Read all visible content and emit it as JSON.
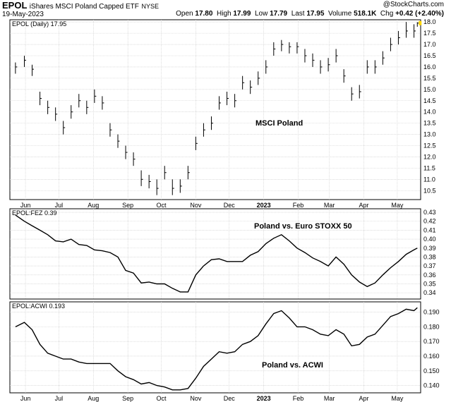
{
  "header": {
    "ticker": "EPOL",
    "name": "iShares MSCI Poland Capped ETF",
    "exchange": "NYSE",
    "date": "19-May-2023",
    "credit": "@StockCharts.com",
    "quote": {
      "open_label": "Open",
      "open": "17.80",
      "high_label": "High",
      "high": "17.99",
      "low_label": "Low",
      "low": "17.79",
      "last_label": "Last",
      "last": "17.95",
      "volume_label": "Volume",
      "volume": "518.1K",
      "chg_label": "Chg",
      "chg": "+0.42 (+2.40%)"
    }
  },
  "colors": {
    "bars": "#000000",
    "line": "#000000",
    "grid": "#c8c8c8",
    "last_marker": "#ffd700"
  },
  "chart_data": [
    {
      "type": "ohlc",
      "legend": "EPOL (Daily) 17.95",
      "annotation": "MSCI Poland",
      "x_tick_labels": [
        "Jun",
        "Jul",
        "Aug",
        "Sep",
        "Oct",
        "Nov",
        "Dec",
        "2023",
        "Feb",
        "Mar",
        "Apr",
        "May"
      ],
      "y_tick_labels": [
        "10.5",
        "11.0",
        "11.5",
        "12.0",
        "12.5",
        "13.0",
        "13.5",
        "14.0",
        "14.5",
        "15.0",
        "15.5",
        "16.0",
        "16.5",
        "17.0",
        "17.5",
        "18.0"
      ],
      "ylim": [
        10.1,
        18.1
      ],
      "y_scale": "linear",
      "grid": true,
      "x": [
        "2022-05-23",
        "2022-05-31",
        "2022-06-07",
        "2022-06-14",
        "2022-06-21",
        "2022-06-28",
        "2022-07-05",
        "2022-07-12",
        "2022-07-19",
        "2022-07-26",
        "2022-08-02",
        "2022-08-09",
        "2022-08-16",
        "2022-08-23",
        "2022-08-30",
        "2022-09-06",
        "2022-09-13",
        "2022-09-20",
        "2022-09-27",
        "2022-10-04",
        "2022-10-11",
        "2022-10-18",
        "2022-10-25",
        "2022-11-01",
        "2022-11-08",
        "2022-11-15",
        "2022-11-22",
        "2022-11-29",
        "2022-12-06",
        "2022-12-13",
        "2022-12-20",
        "2022-12-27",
        "2023-01-03",
        "2023-01-10",
        "2023-01-17",
        "2023-01-24",
        "2023-01-31",
        "2023-02-07",
        "2023-02-14",
        "2023-02-21",
        "2023-02-28",
        "2023-03-07",
        "2023-03-14",
        "2023-03-21",
        "2023-03-28",
        "2023-04-04",
        "2023-04-11",
        "2023-04-18",
        "2023-04-25",
        "2023-05-02",
        "2023-05-09",
        "2023-05-16",
        "2023-05-19"
      ],
      "close": [
        16.0,
        16.3,
        15.9,
        14.6,
        14.2,
        13.9,
        13.3,
        14.0,
        14.5,
        14.2,
        14.7,
        14.4,
        13.2,
        12.7,
        12.2,
        11.9,
        11.0,
        10.9,
        10.6,
        11.3,
        10.6,
        10.7,
        11.3,
        12.6,
        13.2,
        13.5,
        14.4,
        14.6,
        14.5,
        15.3,
        15.1,
        15.5,
        16.0,
        16.8,
        17.0,
        16.9,
        16.9,
        16.5,
        16.3,
        16.0,
        16.1,
        16.5,
        15.6,
        14.8,
        14.9,
        16.0,
        16.0,
        16.4,
        17.0,
        17.3,
        17.6,
        17.6,
        17.95
      ],
      "high": [
        16.2,
        16.5,
        16.1,
        14.9,
        14.5,
        14.2,
        13.6,
        14.3,
        14.8,
        14.5,
        15.0,
        14.7,
        13.5,
        13.0,
        12.5,
        12.2,
        11.4,
        11.2,
        11.0,
        11.6,
        11.0,
        11.0,
        11.6,
        12.9,
        13.5,
        13.8,
        14.7,
        14.9,
        14.8,
        15.6,
        15.4,
        15.8,
        16.3,
        17.1,
        17.2,
        17.1,
        17.1,
        16.8,
        16.6,
        16.3,
        16.4,
        16.8,
        15.9,
        15.1,
        15.2,
        16.3,
        16.3,
        16.7,
        17.3,
        17.6,
        18.0,
        17.9,
        17.99
      ],
      "low": [
        15.7,
        16.0,
        15.6,
        14.3,
        13.9,
        13.6,
        13.0,
        13.7,
        14.2,
        13.9,
        14.4,
        14.1,
        12.9,
        12.4,
        11.9,
        11.6,
        10.7,
        10.6,
        10.3,
        11.0,
        10.3,
        10.4,
        11.0,
        12.3,
        12.9,
        13.2,
        14.1,
        14.3,
        14.2,
        15.0,
        14.8,
        15.2,
        15.7,
        16.5,
        16.7,
        16.6,
        16.6,
        16.2,
        16.0,
        15.7,
        15.8,
        16.2,
        15.3,
        14.5,
        14.6,
        15.7,
        15.7,
        16.1,
        16.7,
        17.0,
        17.3,
        17.3,
        17.79
      ]
    },
    {
      "type": "line",
      "legend": "EPOL:FEZ 0.39",
      "annotation": "Poland vs. Euro STOXX 50",
      "y_tick_labels": [
        "0.34",
        "0.35",
        "0.36",
        "0.37",
        "0.38",
        "0.39",
        "0.40",
        "0.41",
        "0.42",
        "0.43"
      ],
      "ylim": [
        0.333,
        0.434
      ],
      "y_scale": "linear",
      "grid": true,
      "x": [
        "2022-05-23",
        "2022-05-31",
        "2022-06-07",
        "2022-06-14",
        "2022-06-21",
        "2022-06-28",
        "2022-07-05",
        "2022-07-12",
        "2022-07-19",
        "2022-07-26",
        "2022-08-02",
        "2022-08-09",
        "2022-08-16",
        "2022-08-23",
        "2022-08-30",
        "2022-09-06",
        "2022-09-13",
        "2022-09-20",
        "2022-09-27",
        "2022-10-04",
        "2022-10-11",
        "2022-10-18",
        "2022-10-25",
        "2022-11-01",
        "2022-11-08",
        "2022-11-15",
        "2022-11-22",
        "2022-11-29",
        "2022-12-06",
        "2022-12-13",
        "2022-12-20",
        "2022-12-27",
        "2023-01-03",
        "2023-01-10",
        "2023-01-17",
        "2023-01-24",
        "2023-01-31",
        "2023-02-07",
        "2023-02-14",
        "2023-02-21",
        "2023-02-28",
        "2023-03-07",
        "2023-03-14",
        "2023-03-21",
        "2023-03-28",
        "2023-04-04",
        "2023-04-11",
        "2023-04-18",
        "2023-04-25",
        "2023-05-02",
        "2023-05-09",
        "2023-05-16",
        "2023-05-19"
      ],
      "values": [
        0.427,
        0.42,
        0.415,
        0.41,
        0.405,
        0.398,
        0.397,
        0.4,
        0.394,
        0.393,
        0.388,
        0.387,
        0.385,
        0.38,
        0.365,
        0.362,
        0.351,
        0.352,
        0.35,
        0.35,
        0.345,
        0.341,
        0.341,
        0.36,
        0.37,
        0.377,
        0.378,
        0.375,
        0.375,
        0.375,
        0.382,
        0.386,
        0.395,
        0.401,
        0.405,
        0.398,
        0.39,
        0.385,
        0.379,
        0.375,
        0.37,
        0.38,
        0.372,
        0.36,
        0.352,
        0.347,
        0.351,
        0.36,
        0.368,
        0.375,
        0.383,
        0.388,
        0.39
      ]
    },
    {
      "type": "line",
      "legend": "EPOL:ACWI 0.193",
      "annotation": "Poland vs. ACWI",
      "y_tick_labels": [
        "0.140",
        "0.150",
        "0.160",
        "0.170",
        "0.180",
        "0.190"
      ],
      "ylim": [
        0.135,
        0.197
      ],
      "y_scale": "linear",
      "grid": true,
      "x": [
        "2022-05-23",
        "2022-05-31",
        "2022-06-07",
        "2022-06-14",
        "2022-06-21",
        "2022-06-28",
        "2022-07-05",
        "2022-07-12",
        "2022-07-19",
        "2022-07-26",
        "2022-08-02",
        "2022-08-09",
        "2022-08-16",
        "2022-08-23",
        "2022-08-30",
        "2022-09-06",
        "2022-09-13",
        "2022-09-20",
        "2022-09-27",
        "2022-10-04",
        "2022-10-11",
        "2022-10-18",
        "2022-10-25",
        "2022-11-01",
        "2022-11-08",
        "2022-11-15",
        "2022-11-22",
        "2022-11-29",
        "2022-12-06",
        "2022-12-13",
        "2022-12-20",
        "2022-12-27",
        "2023-01-03",
        "2023-01-10",
        "2023-01-17",
        "2023-01-24",
        "2023-01-31",
        "2023-02-07",
        "2023-02-14",
        "2023-02-21",
        "2023-02-28",
        "2023-03-07",
        "2023-03-14",
        "2023-03-21",
        "2023-03-28",
        "2023-04-04",
        "2023-04-11",
        "2023-04-18",
        "2023-04-25",
        "2023-05-02",
        "2023-05-09",
        "2023-05-16",
        "2023-05-19"
      ],
      "values": [
        0.18,
        0.183,
        0.178,
        0.168,
        0.162,
        0.16,
        0.158,
        0.158,
        0.156,
        0.155,
        0.155,
        0.155,
        0.155,
        0.15,
        0.146,
        0.144,
        0.141,
        0.142,
        0.14,
        0.139,
        0.137,
        0.137,
        0.138,
        0.145,
        0.153,
        0.158,
        0.163,
        0.162,
        0.163,
        0.168,
        0.17,
        0.174,
        0.182,
        0.189,
        0.191,
        0.186,
        0.18,
        0.18,
        0.178,
        0.175,
        0.174,
        0.178,
        0.175,
        0.167,
        0.168,
        0.173,
        0.175,
        0.181,
        0.187,
        0.189,
        0.192,
        0.191,
        0.193
      ]
    }
  ]
}
